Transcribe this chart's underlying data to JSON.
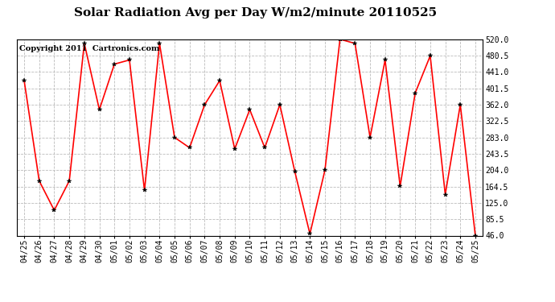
{
  "title": "Solar Radiation Avg per Day W/m2/minute 20110525",
  "copyright": "Copyright 2011  Cartronics.com",
  "dates": [
    "04/25",
    "04/26",
    "04/27",
    "04/28",
    "04/29",
    "04/30",
    "05/01",
    "05/02",
    "05/03",
    "05/04",
    "05/05",
    "05/06",
    "05/07",
    "05/08",
    "05/09",
    "05/10",
    "05/11",
    "05/12",
    "05/13",
    "05/14",
    "05/15",
    "05/16",
    "05/17",
    "05/18",
    "05/19",
    "05/20",
    "05/21",
    "05/22",
    "05/23",
    "05/24",
    "05/25"
  ],
  "values": [
    420,
    178,
    107,
    178,
    510,
    350,
    460,
    470,
    155,
    510,
    283,
    258,
    362,
    420,
    255,
    350,
    258,
    362,
    200,
    50,
    204,
    520,
    510,
    283,
    470,
    165,
    390,
    480,
    145,
    362,
    46
  ],
  "line_color": "#ff0000",
  "bg_color": "#ffffff",
  "grid_color": "#bbbbbb",
  "ylim_min": 46.0,
  "ylim_max": 520.0,
  "yticks": [
    46.0,
    85.5,
    125.0,
    164.5,
    204.0,
    243.5,
    283.0,
    322.5,
    362.0,
    401.5,
    441.0,
    480.5,
    520.0
  ],
  "title_fontsize": 11,
  "tick_fontsize": 7,
  "copyright_fontsize": 7
}
